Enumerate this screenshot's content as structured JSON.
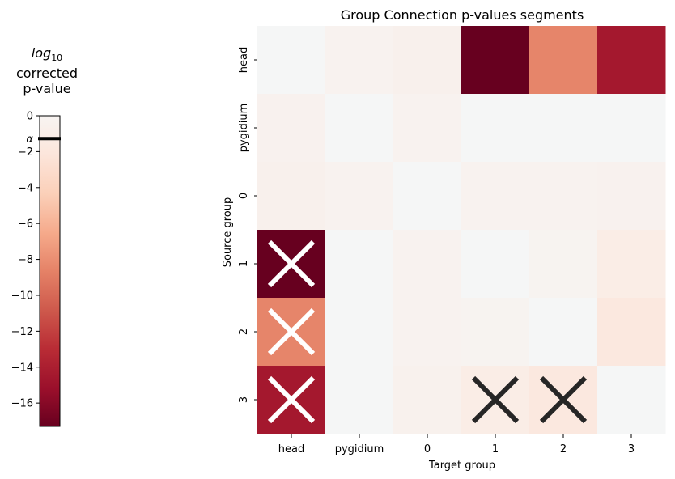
{
  "chart_data": {
    "type": "heatmap",
    "title": "Group Connection p-values segments",
    "xlabel": "Target group",
    "ylabel": "Source group",
    "x_categories": [
      "head",
      "pygidium",
      "0",
      "1",
      "2",
      "3"
    ],
    "y_categories": [
      "head",
      "pygidium",
      "0",
      "1",
      "2",
      "3"
    ],
    "values": [
      [
        0.0,
        -0.3,
        -0.6,
        -17.3,
        -8.5,
        -14.5
      ],
      [
        -0.4,
        0.0,
        -0.3,
        0.0,
        0.0,
        0.0
      ],
      [
        -0.6,
        -0.3,
        0.0,
        -0.3,
        -0.3,
        -0.4
      ],
      [
        -17.3,
        0.0,
        -0.3,
        0.0,
        -0.2,
        -1.1
      ],
      [
        -8.5,
        0.0,
        -0.3,
        -0.2,
        0.0,
        -1.8
      ],
      [
        -14.5,
        0.0,
        -0.5,
        -1.1,
        -1.8,
        0.0
      ]
    ],
    "marked_cells": [
      {
        "row": "1",
        "col": "head",
        "mark": "X",
        "color": "#ffffff"
      },
      {
        "row": "2",
        "col": "head",
        "mark": "X",
        "color": "#ffffff"
      },
      {
        "row": "3",
        "col": "head",
        "mark": "X",
        "color": "#ffffff"
      },
      {
        "row": "3",
        "col": "1",
        "mark": "X",
        "color": "#262626"
      },
      {
        "row": "3",
        "col": "2",
        "mark": "X",
        "color": "#262626"
      }
    ],
    "colorbar": {
      "title_log": "log",
      "title_base": "10",
      "title_rest": [
        "corrected",
        "p-value"
      ],
      "colormap": "RdBu-red-half",
      "vmin": -17.3,
      "vmax": 0,
      "ticks": [
        0,
        -2,
        -4,
        -6,
        -8,
        -10,
        -12,
        -14,
        -16
      ],
      "tick_labels": [
        "0",
        "−2",
        "−4",
        "−6",
        "−8",
        "−10",
        "−12",
        "−14",
        "−16"
      ],
      "alpha_label": "α",
      "alpha_value": -1.0
    },
    "colors": {
      "neutral": "#f5f6f6",
      "dark": "#67001f"
    }
  }
}
